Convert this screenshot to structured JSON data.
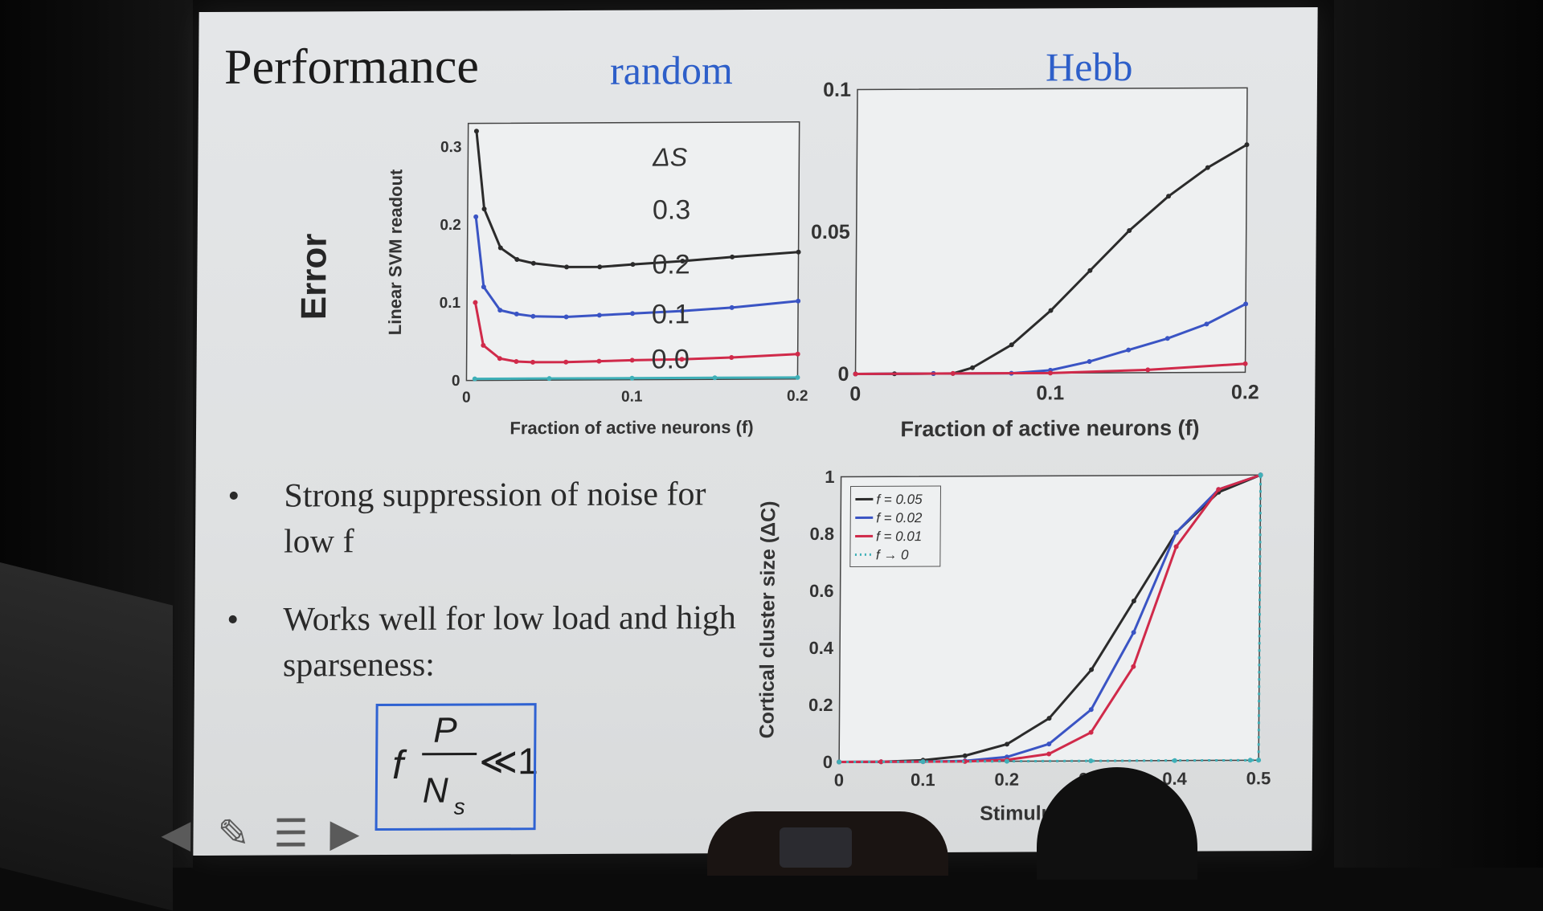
{
  "slide": {
    "title": "Performance",
    "col_random": "random",
    "col_hebb": "Hebb",
    "error_label": "Error",
    "bullets": [
      "Strong suppression of noise for low f",
      "Works well for low load and high sparseness:"
    ],
    "formula": {
      "f": "f",
      "numerator": "P",
      "denominator": "N",
      "subscript": "s",
      "relation": "≪1"
    }
  },
  "chart_data": [
    {
      "type": "line",
      "title": "random",
      "ylabel": "Linear SVM readout",
      "xlabel": "Fraction of active neurons (f)",
      "xlim": [
        0,
        0.2
      ],
      "ylim": [
        0,
        0.33
      ],
      "xticks": [
        "0",
        "0.1",
        "0.2"
      ],
      "yticks": [
        "0",
        "0.1",
        "0.2",
        "0.3"
      ],
      "legend_title": "ΔS",
      "series": [
        {
          "name": "0.3",
          "color": "#2b2b2b",
          "x": [
            0.005,
            0.01,
            0.02,
            0.03,
            0.04,
            0.06,
            0.08,
            0.1,
            0.13,
            0.16,
            0.2
          ],
          "y": [
            0.32,
            0.22,
            0.17,
            0.155,
            0.15,
            0.145,
            0.145,
            0.148,
            0.152,
            0.157,
            0.163
          ]
        },
        {
          "name": "0.2",
          "color": "#3a54c4",
          "x": [
            0.005,
            0.01,
            0.02,
            0.03,
            0.04,
            0.06,
            0.08,
            0.1,
            0.13,
            0.16,
            0.2
          ],
          "y": [
            0.21,
            0.12,
            0.09,
            0.085,
            0.082,
            0.081,
            0.083,
            0.085,
            0.088,
            0.092,
            0.1
          ]
        },
        {
          "name": "0.1",
          "color": "#d02a4a",
          "x": [
            0.005,
            0.01,
            0.02,
            0.03,
            0.04,
            0.06,
            0.08,
            0.1,
            0.13,
            0.16,
            0.2
          ],
          "y": [
            0.1,
            0.045,
            0.028,
            0.024,
            0.023,
            0.023,
            0.024,
            0.025,
            0.026,
            0.028,
            0.032
          ]
        },
        {
          "name": "0.0",
          "color": "#3fb0b8",
          "x": [
            0.005,
            0.05,
            0.1,
            0.15,
            0.2
          ],
          "y": [
            0.002,
            0.002,
            0.002,
            0.002,
            0.002
          ]
        }
      ]
    },
    {
      "type": "line",
      "title": "Hebb",
      "xlabel": "Fraction of active neurons (f)",
      "xlim": [
        0,
        0.2
      ],
      "ylim": [
        0,
        0.1
      ],
      "xticks": [
        "0",
        "0.1",
        "0.2"
      ],
      "yticks": [
        "0",
        "0.05",
        "0.1"
      ],
      "series": [
        {
          "name": "0.3",
          "color": "#2b2b2b",
          "x": [
            0,
            0.02,
            0.04,
            0.05,
            0.06,
            0.08,
            0.1,
            0.12,
            0.14,
            0.16,
            0.18,
            0.2
          ],
          "y": [
            0,
            0,
            0,
            0,
            0.002,
            0.01,
            0.022,
            0.036,
            0.05,
            0.062,
            0.072,
            0.08
          ]
        },
        {
          "name": "0.2",
          "color": "#3a54c4",
          "x": [
            0,
            0.04,
            0.08,
            0.1,
            0.12,
            0.14,
            0.16,
            0.18,
            0.2
          ],
          "y": [
            0,
            0,
            0,
            0.001,
            0.004,
            0.008,
            0.012,
            0.017,
            0.024
          ]
        },
        {
          "name": "0.1",
          "color": "#d02a4a",
          "x": [
            0,
            0.05,
            0.1,
            0.15,
            0.2
          ],
          "y": [
            0,
            0,
            0,
            0.001,
            0.003
          ]
        }
      ]
    },
    {
      "type": "line",
      "ylabel": "Cortical cluster size (ΔC)",
      "xlabel": "Stimulus clust",
      "xlim": [
        0,
        0.5
      ],
      "ylim": [
        0,
        1
      ],
      "xticks": [
        "0",
        "0.1",
        "0.2",
        "0.3",
        "0.4",
        "0.5"
      ],
      "yticks": [
        "0",
        "0.2",
        "0.4",
        "0.6",
        "0.8",
        "1"
      ],
      "series": [
        {
          "name": "f = 0.05",
          "color": "#2b2b2b",
          "x": [
            0,
            0.05,
            0.1,
            0.15,
            0.2,
            0.25,
            0.3,
            0.35,
            0.4,
            0.45,
            0.5
          ],
          "y": [
            0,
            0,
            0.005,
            0.02,
            0.06,
            0.15,
            0.32,
            0.56,
            0.8,
            0.94,
            1
          ]
        },
        {
          "name": "f = 0.02",
          "color": "#3a54c4",
          "x": [
            0,
            0.05,
            0.1,
            0.15,
            0.2,
            0.25,
            0.3,
            0.35,
            0.4,
            0.45,
            0.5
          ],
          "y": [
            0,
            0,
            0,
            0.002,
            0.015,
            0.06,
            0.18,
            0.45,
            0.8,
            0.95,
            1
          ]
        },
        {
          "name": "f = 0.01",
          "color": "#d02a4a",
          "x": [
            0,
            0.05,
            0.1,
            0.15,
            0.2,
            0.25,
            0.3,
            0.35,
            0.4,
            0.45,
            0.5
          ],
          "y": [
            0,
            0,
            0,
            0,
            0.005,
            0.025,
            0.1,
            0.33,
            0.75,
            0.95,
            1
          ]
        },
        {
          "name": "f → 0",
          "color": "#3fb0b8",
          "dashed": true,
          "x": [
            0,
            0.1,
            0.2,
            0.3,
            0.4,
            0.49,
            0.5,
            0.5
          ],
          "y": [
            0,
            0,
            0,
            0,
            0,
            0,
            0,
            1
          ]
        }
      ],
      "legend": "top-left"
    }
  ]
}
